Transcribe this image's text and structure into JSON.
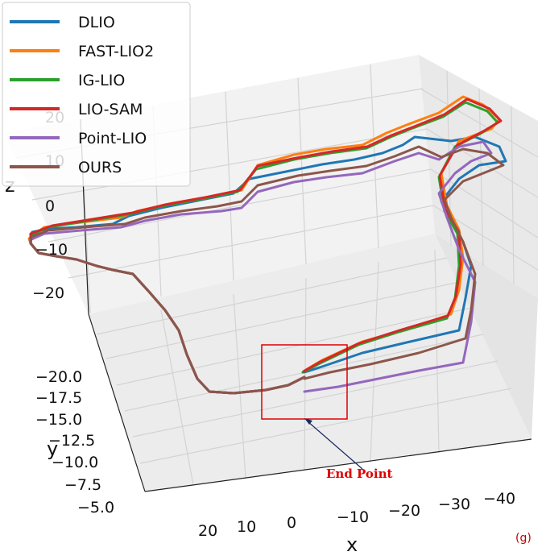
{
  "chart_data": {
    "type": "line",
    "projection": "3d",
    "grid": true,
    "legend_position": "top-left",
    "axes": {
      "x": {
        "label": "x",
        "ticks": [
          "20",
          "10",
          "0",
          "−10",
          "−20",
          "−30",
          "−40"
        ]
      },
      "y": {
        "label": "y",
        "ticks": [
          "−20.0",
          "−17.5",
          "−15.0",
          "−12.5",
          "−10.0",
          "−7.5",
          "−5.0"
        ]
      },
      "z": {
        "label": "z",
        "ticks": [
          "20",
          "10",
          "0",
          "−10",
          "−20"
        ]
      }
    },
    "series": [
      {
        "name": "DLIO",
        "color": "#1f77b4"
      },
      {
        "name": "FAST-LIO2",
        "color": "#ff7f0e"
      },
      {
        "name": "IG-LIO",
        "color": "#2ca02c"
      },
      {
        "name": "LIO-SAM",
        "color": "#d62728"
      },
      {
        "name": "Point-LIO",
        "color": "#9467bd"
      },
      {
        "name": "OURS",
        "color": "#8c564b"
      }
    ],
    "annotation": {
      "text": "End Point",
      "color": "#e00000"
    },
    "panel_label": "(g)"
  }
}
